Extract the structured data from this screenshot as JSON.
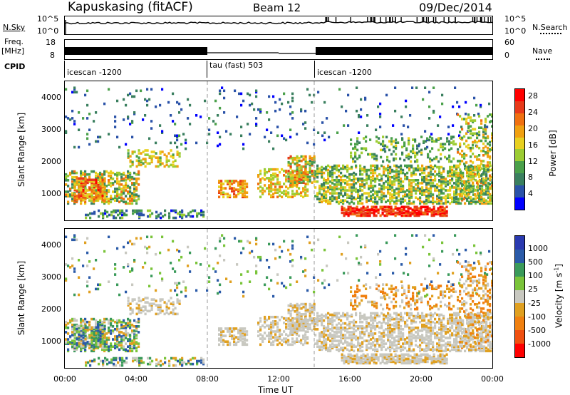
{
  "header": {
    "station": "Kapuskasing (fitACF)",
    "beam": "Beam 12",
    "date": "09/Dec/2014"
  },
  "top_panels": {
    "nsky_label": "N.Sky",
    "nsky_ticks": [
      "10^5",
      "10^0"
    ],
    "nsearch_label": "N.Search",
    "nsearch_ticks": [
      "10^5",
      "10^0"
    ],
    "freq_label": "Freq.",
    "freq_unit": "[MHz]",
    "freq_ticks": [
      "18",
      "8"
    ],
    "nave_label": "Nave",
    "nave_ticks": [
      "60",
      "0"
    ],
    "cpid_label": "CPID",
    "cpid_segments": [
      "icescan -1200",
      "tau (fast) 503",
      "icescan -1200"
    ]
  },
  "colors": {
    "power": [
      "#0000ff",
      "#2a52a8",
      "#3a7f5f",
      "#4aa04a",
      "#9ccc33",
      "#e8d020",
      "#f0a010",
      "#f07010",
      "#e83a1a",
      "#ff0000"
    ],
    "velocity": [
      "#2a3ab0",
      "#2a5aa8",
      "#3a9a5a",
      "#7ac43a",
      "#c8c8c0",
      "#e0a020",
      "#f08010",
      "#f05010",
      "#ff0000"
    ]
  },
  "chart_data": [
    {
      "type": "heatmap",
      "title": "Power",
      "xlabel": "Time UT",
      "ylabel": "Slant Range [km]",
      "x_ticks": [
        "00:00",
        "04:00",
        "08:00",
        "12:00",
        "16:00",
        "20:00",
        "00:00"
      ],
      "y_ticks": [
        "1000",
        "2000",
        "3000",
        "4000"
      ],
      "ylim": [
        180,
        4500
      ],
      "colorbar_label": "Power [dB]",
      "colorbar_ticks": [
        "4",
        "8",
        "12",
        "16",
        "20",
        "24",
        "28"
      ],
      "clim": [
        0,
        30
      ]
    },
    {
      "type": "heatmap",
      "title": "Velocity",
      "xlabel": "Time UT",
      "ylabel": "Slant Range [km]",
      "x_ticks": [
        "00:00",
        "04:00",
        "08:00",
        "12:00",
        "16:00",
        "20:00",
        "00:00"
      ],
      "y_ticks": [
        "1000",
        "2000",
        "3000",
        "4000"
      ],
      "ylim": [
        180,
        4500
      ],
      "colorbar_label": "Velocity [m s^-1]",
      "colorbar_ticks": [
        "1000",
        "500",
        "100",
        "25",
        "-25",
        "-100",
        "-500",
        "-1000"
      ]
    }
  ]
}
